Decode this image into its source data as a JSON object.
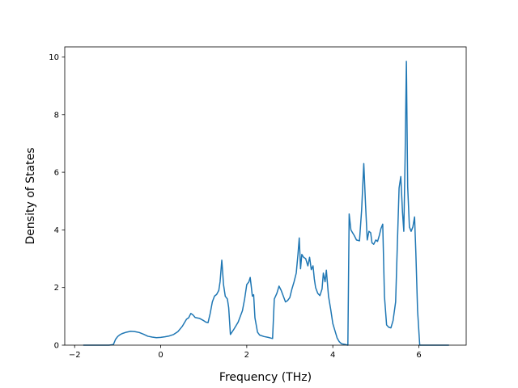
{
  "chart_data": {
    "type": "line",
    "title": "",
    "xlabel": "Frequency (THz)",
    "ylabel": "Density of States",
    "xlim": [
      -2.23,
      7.1
    ],
    "ylim": [
      0,
      10.35
    ],
    "xticks": [
      -2,
      0,
      2,
      4,
      6
    ],
    "xtick_labels": [
      "−2",
      "0",
      "2",
      "4",
      "6"
    ],
    "yticks": [
      0,
      2,
      4,
      6,
      8,
      10
    ],
    "ytick_labels": [
      "0",
      "2",
      "4",
      "6",
      "8",
      "10"
    ],
    "grid": false,
    "legend": "none",
    "series": [
      {
        "color": "#1f77b4",
        "points": [
          [
            -1.8,
            0
          ],
          [
            -1.2,
            0
          ],
          [
            -1.1,
            0.02
          ],
          [
            -1.05,
            0.2
          ],
          [
            -1.0,
            0.3
          ],
          [
            -0.95,
            0.36
          ],
          [
            -0.9,
            0.4
          ],
          [
            -0.8,
            0.45
          ],
          [
            -0.7,
            0.48
          ],
          [
            -0.6,
            0.47
          ],
          [
            -0.5,
            0.44
          ],
          [
            -0.4,
            0.38
          ],
          [
            -0.3,
            0.31
          ],
          [
            -0.2,
            0.28
          ],
          [
            -0.1,
            0.26
          ],
          [
            0.0,
            0.27
          ],
          [
            0.1,
            0.29
          ],
          [
            0.2,
            0.32
          ],
          [
            0.3,
            0.37
          ],
          [
            0.4,
            0.47
          ],
          [
            0.5,
            0.65
          ],
          [
            0.6,
            0.9
          ],
          [
            0.65,
            0.95
          ],
          [
            0.7,
            1.1
          ],
          [
            0.75,
            1.05
          ],
          [
            0.8,
            0.96
          ],
          [
            0.9,
            0.93
          ],
          [
            1.0,
            0.85
          ],
          [
            1.05,
            0.8
          ],
          [
            1.1,
            0.78
          ],
          [
            1.15,
            1.1
          ],
          [
            1.2,
            1.5
          ],
          [
            1.25,
            1.7
          ],
          [
            1.3,
            1.76
          ],
          [
            1.35,
            1.9
          ],
          [
            1.38,
            2.2
          ],
          [
            1.42,
            2.95
          ],
          [
            1.46,
            2.1
          ],
          [
            1.5,
            1.7
          ],
          [
            1.55,
            1.6
          ],
          [
            1.58,
            1.3
          ],
          [
            1.62,
            0.37
          ],
          [
            1.7,
            0.55
          ],
          [
            1.8,
            0.8
          ],
          [
            1.9,
            1.2
          ],
          [
            1.95,
            1.6
          ],
          [
            2.0,
            2.1
          ],
          [
            2.05,
            2.2
          ],
          [
            2.08,
            2.35
          ],
          [
            2.1,
            2.1
          ],
          [
            2.13,
            1.7
          ],
          [
            2.16,
            1.75
          ],
          [
            2.19,
            0.95
          ],
          [
            2.25,
            0.45
          ],
          [
            2.3,
            0.35
          ],
          [
            2.4,
            0.3
          ],
          [
            2.5,
            0.27
          ],
          [
            2.6,
            0.23
          ],
          [
            2.64,
            1.6
          ],
          [
            2.7,
            1.8
          ],
          [
            2.75,
            2.05
          ],
          [
            2.8,
            1.9
          ],
          [
            2.85,
            1.7
          ],
          [
            2.9,
            1.5
          ],
          [
            2.95,
            1.55
          ],
          [
            3.0,
            1.65
          ],
          [
            3.05,
            1.95
          ],
          [
            3.1,
            2.2
          ],
          [
            3.15,
            2.5
          ],
          [
            3.19,
            3.15
          ],
          [
            3.22,
            3.72
          ],
          [
            3.25,
            2.65
          ],
          [
            3.28,
            3.15
          ],
          [
            3.32,
            3.05
          ],
          [
            3.37,
            3.0
          ],
          [
            3.42,
            2.75
          ],
          [
            3.46,
            3.05
          ],
          [
            3.5,
            2.62
          ],
          [
            3.54,
            2.75
          ],
          [
            3.57,
            2.3
          ],
          [
            3.6,
            2.0
          ],
          [
            3.65,
            1.8
          ],
          [
            3.7,
            1.72
          ],
          [
            3.75,
            1.95
          ],
          [
            3.78,
            2.5
          ],
          [
            3.82,
            2.2
          ],
          [
            3.85,
            2.6
          ],
          [
            3.9,
            1.7
          ],
          [
            3.95,
            1.25
          ],
          [
            4.0,
            0.75
          ],
          [
            4.05,
            0.5
          ],
          [
            4.1,
            0.25
          ],
          [
            4.15,
            0.12
          ],
          [
            4.2,
            0.05
          ],
          [
            4.3,
            0.02
          ],
          [
            4.35,
            0.0
          ],
          [
            4.38,
            4.55
          ],
          [
            4.42,
            4.0
          ],
          [
            4.46,
            3.9
          ],
          [
            4.5,
            3.8
          ],
          [
            4.55,
            3.65
          ],
          [
            4.62,
            3.62
          ],
          [
            4.67,
            4.7
          ],
          [
            4.72,
            6.3
          ],
          [
            4.76,
            4.9
          ],
          [
            4.8,
            3.65
          ],
          [
            4.84,
            3.95
          ],
          [
            4.88,
            3.9
          ],
          [
            4.91,
            3.55
          ],
          [
            4.95,
            3.5
          ],
          [
            5.0,
            3.65
          ],
          [
            5.04,
            3.6
          ],
          [
            5.08,
            3.8
          ],
          [
            5.12,
            4.05
          ],
          [
            5.16,
            4.2
          ],
          [
            5.2,
            1.7
          ],
          [
            5.25,
            0.7
          ],
          [
            5.3,
            0.62
          ],
          [
            5.35,
            0.6
          ],
          [
            5.4,
            0.85
          ],
          [
            5.46,
            1.5
          ],
          [
            5.5,
            3.5
          ],
          [
            5.54,
            5.45
          ],
          [
            5.58,
            5.85
          ],
          [
            5.62,
            4.6
          ],
          [
            5.65,
            3.95
          ],
          [
            5.68,
            6.5
          ],
          [
            5.71,
            9.85
          ],
          [
            5.74,
            5.5
          ],
          [
            5.78,
            4.1
          ],
          [
            5.82,
            3.95
          ],
          [
            5.86,
            4.1
          ],
          [
            5.9,
            4.45
          ],
          [
            5.93,
            3.2
          ],
          [
            5.97,
            1.2
          ],
          [
            6.02,
            0.0
          ],
          [
            6.1,
            0.0
          ],
          [
            6.7,
            0.0
          ]
        ]
      }
    ]
  }
}
